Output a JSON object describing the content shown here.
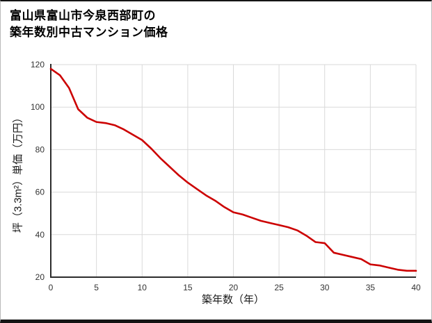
{
  "page": {
    "title_line1": "富山県富山市今泉西部町の",
    "title_line2": "築年数別中古マンション価格"
  },
  "chart_data": {
    "type": "line",
    "title": "富山県富山市今泉西部町の築年数別中古マンション価格",
    "xlabel": "築年数（年）",
    "ylabel": "坪（3.3m²）単価（万円）",
    "xlim": [
      0,
      40
    ],
    "ylim": [
      20,
      120
    ],
    "x_ticks": [
      0,
      5,
      10,
      15,
      20,
      25,
      30,
      35,
      40
    ],
    "y_ticks": [
      20,
      40,
      60,
      80,
      100,
      120
    ],
    "grid": true,
    "legend": "none",
    "line_color": "#cc0000",
    "grid_color": "#d9d9d9",
    "axis_color": "#2b2b2b",
    "series": [
      {
        "name": "坪単価（万円）",
        "x": [
          0,
          1,
          2,
          3,
          4,
          5,
          6,
          7,
          8,
          9,
          10,
          11,
          12,
          13,
          14,
          15,
          16,
          17,
          18,
          19,
          20,
          21,
          22,
          23,
          24,
          25,
          26,
          27,
          28,
          29,
          30,
          31,
          32,
          33,
          34,
          35,
          36,
          37,
          38,
          39,
          40
        ],
        "values": [
          118,
          115,
          109,
          99,
          95,
          93,
          92.5,
          91.5,
          89.5,
          87,
          84.5,
          80.5,
          76,
          72,
          68,
          64.5,
          61.5,
          58.5,
          56,
          53,
          50.5,
          49.5,
          48,
          46.5,
          45.5,
          44.5,
          43.5,
          42,
          39.5,
          36.5,
          36,
          31.5,
          30.5,
          29.5,
          28.5,
          26,
          25.5,
          24.5,
          23.5,
          23,
          23
        ]
      }
    ]
  }
}
